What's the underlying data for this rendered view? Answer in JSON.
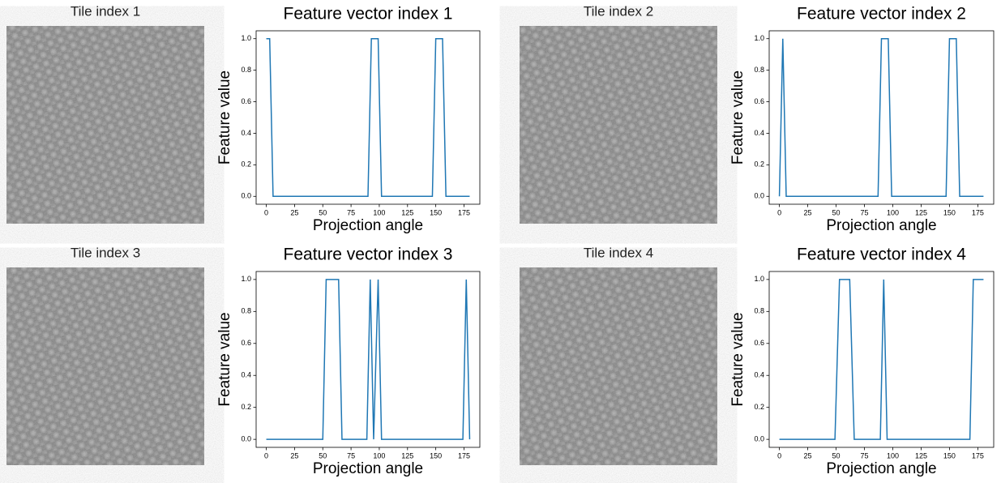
{
  "tiles": [
    {
      "title": "Tile index 1"
    },
    {
      "title": "Tile index 2"
    },
    {
      "title": "Tile index 3"
    },
    {
      "title": "Tile index 4"
    }
  ],
  "chart_data": [
    {
      "type": "line",
      "title": "Feature vector  index 1",
      "x_label": "Projection angle",
      "y_label": "Feature value",
      "series": [
        {
          "color": "#1f77b4",
          "x": [
            0,
            3,
            6,
            90,
            93,
            99,
            102,
            147,
            150,
            156,
            159,
            180
          ],
          "values": [
            1,
            1,
            0,
            0,
            1,
            1,
            0,
            0,
            1,
            1,
            0,
            0
          ]
        }
      ],
      "xlim": [
        -9,
        189
      ],
      "ylim": [
        -0.05,
        1.05
      ],
      "xticks": [
        0,
        25,
        50,
        75,
        100,
        125,
        150,
        175
      ],
      "yticks": [
        {
          "value": 0,
          "label": "0.0"
        },
        {
          "value": 0.2,
          "label": "0.2"
        },
        {
          "value": 0.4,
          "label": "0.4"
        },
        {
          "value": 0.6,
          "label": "0.6"
        },
        {
          "value": 0.8,
          "label": "0.8"
        },
        {
          "value": 1,
          "label": "1.0"
        }
      ],
      "grid": false
    },
    {
      "type": "line",
      "title": "Feature vector  index 2",
      "x_label": "Projection angle",
      "y_label": "Feature value",
      "series": [
        {
          "color": "#1f77b4",
          "x": [
            0,
            3,
            6,
            87,
            90,
            96,
            99,
            147,
            150,
            156,
            159,
            180
          ],
          "values": [
            0,
            1,
            0,
            0,
            1,
            1,
            0,
            0,
            1,
            1,
            0,
            0
          ]
        }
      ],
      "xlim": [
        -9,
        189
      ],
      "ylim": [
        -0.05,
        1.05
      ],
      "xticks": [
        0,
        25,
        50,
        75,
        100,
        125,
        150,
        175
      ],
      "yticks": [
        {
          "value": 0,
          "label": "0.0"
        },
        {
          "value": 0.2,
          "label": "0.2"
        },
        {
          "value": 0.4,
          "label": "0.4"
        },
        {
          "value": 0.6,
          "label": "0.6"
        },
        {
          "value": 0.8,
          "label": "0.8"
        },
        {
          "value": 1,
          "label": "1.0"
        }
      ],
      "grid": false
    },
    {
      "type": "line",
      "title": "Feature vector  index 3",
      "x_label": "Projection angle",
      "y_label": "Feature value",
      "series": [
        {
          "color": "#1f77b4",
          "x": [
            0,
            50,
            53,
            64,
            67,
            89,
            92,
            95,
            99,
            102,
            174,
            177,
            180
          ],
          "values": [
            0,
            0,
            1,
            1,
            0,
            0,
            1,
            0,
            1,
            0,
            0,
            1,
            0
          ]
        }
      ],
      "xlim": [
        -9,
        189
      ],
      "ylim": [
        -0.05,
        1.05
      ],
      "xticks": [
        0,
        25,
        50,
        75,
        100,
        125,
        150,
        175
      ],
      "yticks": [
        {
          "value": 0,
          "label": "0.0"
        },
        {
          "value": 0.2,
          "label": "0.2"
        },
        {
          "value": 0.4,
          "label": "0.4"
        },
        {
          "value": 0.6,
          "label": "0.6"
        },
        {
          "value": 0.8,
          "label": "0.8"
        },
        {
          "value": 1,
          "label": "1.0"
        }
      ],
      "grid": false
    },
    {
      "type": "line",
      "title": "Feature vector  index 4",
      "x_label": "Projection angle",
      "y_label": "Feature value",
      "series": [
        {
          "color": "#1f77b4",
          "x": [
            0,
            49,
            53,
            62,
            66,
            89,
            92,
            95,
            168,
            171,
            180
          ],
          "values": [
            0,
            0,
            1,
            1,
            0,
            0,
            1,
            0,
            0,
            1,
            1
          ]
        }
      ],
      "xlim": [
        -9,
        189
      ],
      "ylim": [
        -0.05,
        1.05
      ],
      "xticks": [
        0,
        25,
        50,
        75,
        100,
        125,
        150,
        175
      ],
      "yticks": [
        {
          "value": 0,
          "label": "0.0"
        },
        {
          "value": 0.2,
          "label": "0.2"
        },
        {
          "value": 0.4,
          "label": "0.4"
        },
        {
          "value": 0.6,
          "label": "0.6"
        },
        {
          "value": 0.8,
          "label": "0.8"
        },
        {
          "value": 1,
          "label": "1.0"
        }
      ],
      "grid": false
    }
  ]
}
